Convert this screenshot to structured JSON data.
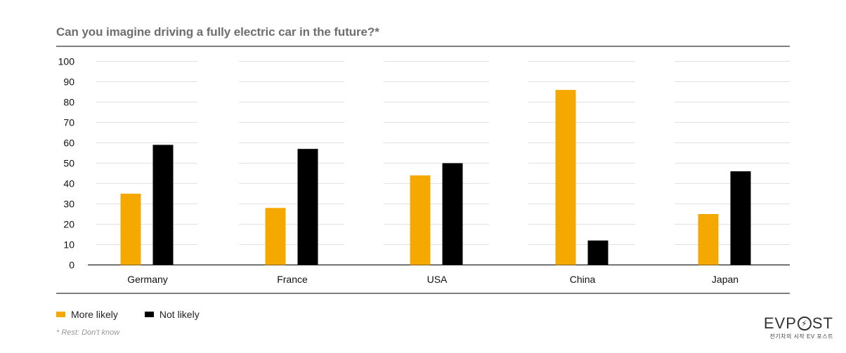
{
  "chart_data": {
    "type": "bar",
    "title": "Can you imagine driving a fully electric car in the future?*",
    "categories": [
      "Germany",
      "France",
      "USA",
      "China",
      "Japan"
    ],
    "series": [
      {
        "name": "More likely",
        "color": "#f5a800",
        "values": [
          35,
          28,
          44,
          86,
          25
        ]
      },
      {
        "name": "Not likely",
        "color": "#000000",
        "values": [
          59,
          57,
          50,
          12,
          46
        ]
      }
    ],
    "ylim": [
      0,
      100
    ],
    "yticks": [
      0,
      10,
      20,
      30,
      40,
      50,
      60,
      70,
      80,
      90,
      100
    ],
    "legend_position": "bottom-left",
    "grid": true
  },
  "footnote": "* Rest: Don't know",
  "logo": {
    "main_left": "EVP",
    "main_right": "ST",
    "tagline": "전기차의 시작 EV 포스트"
  }
}
